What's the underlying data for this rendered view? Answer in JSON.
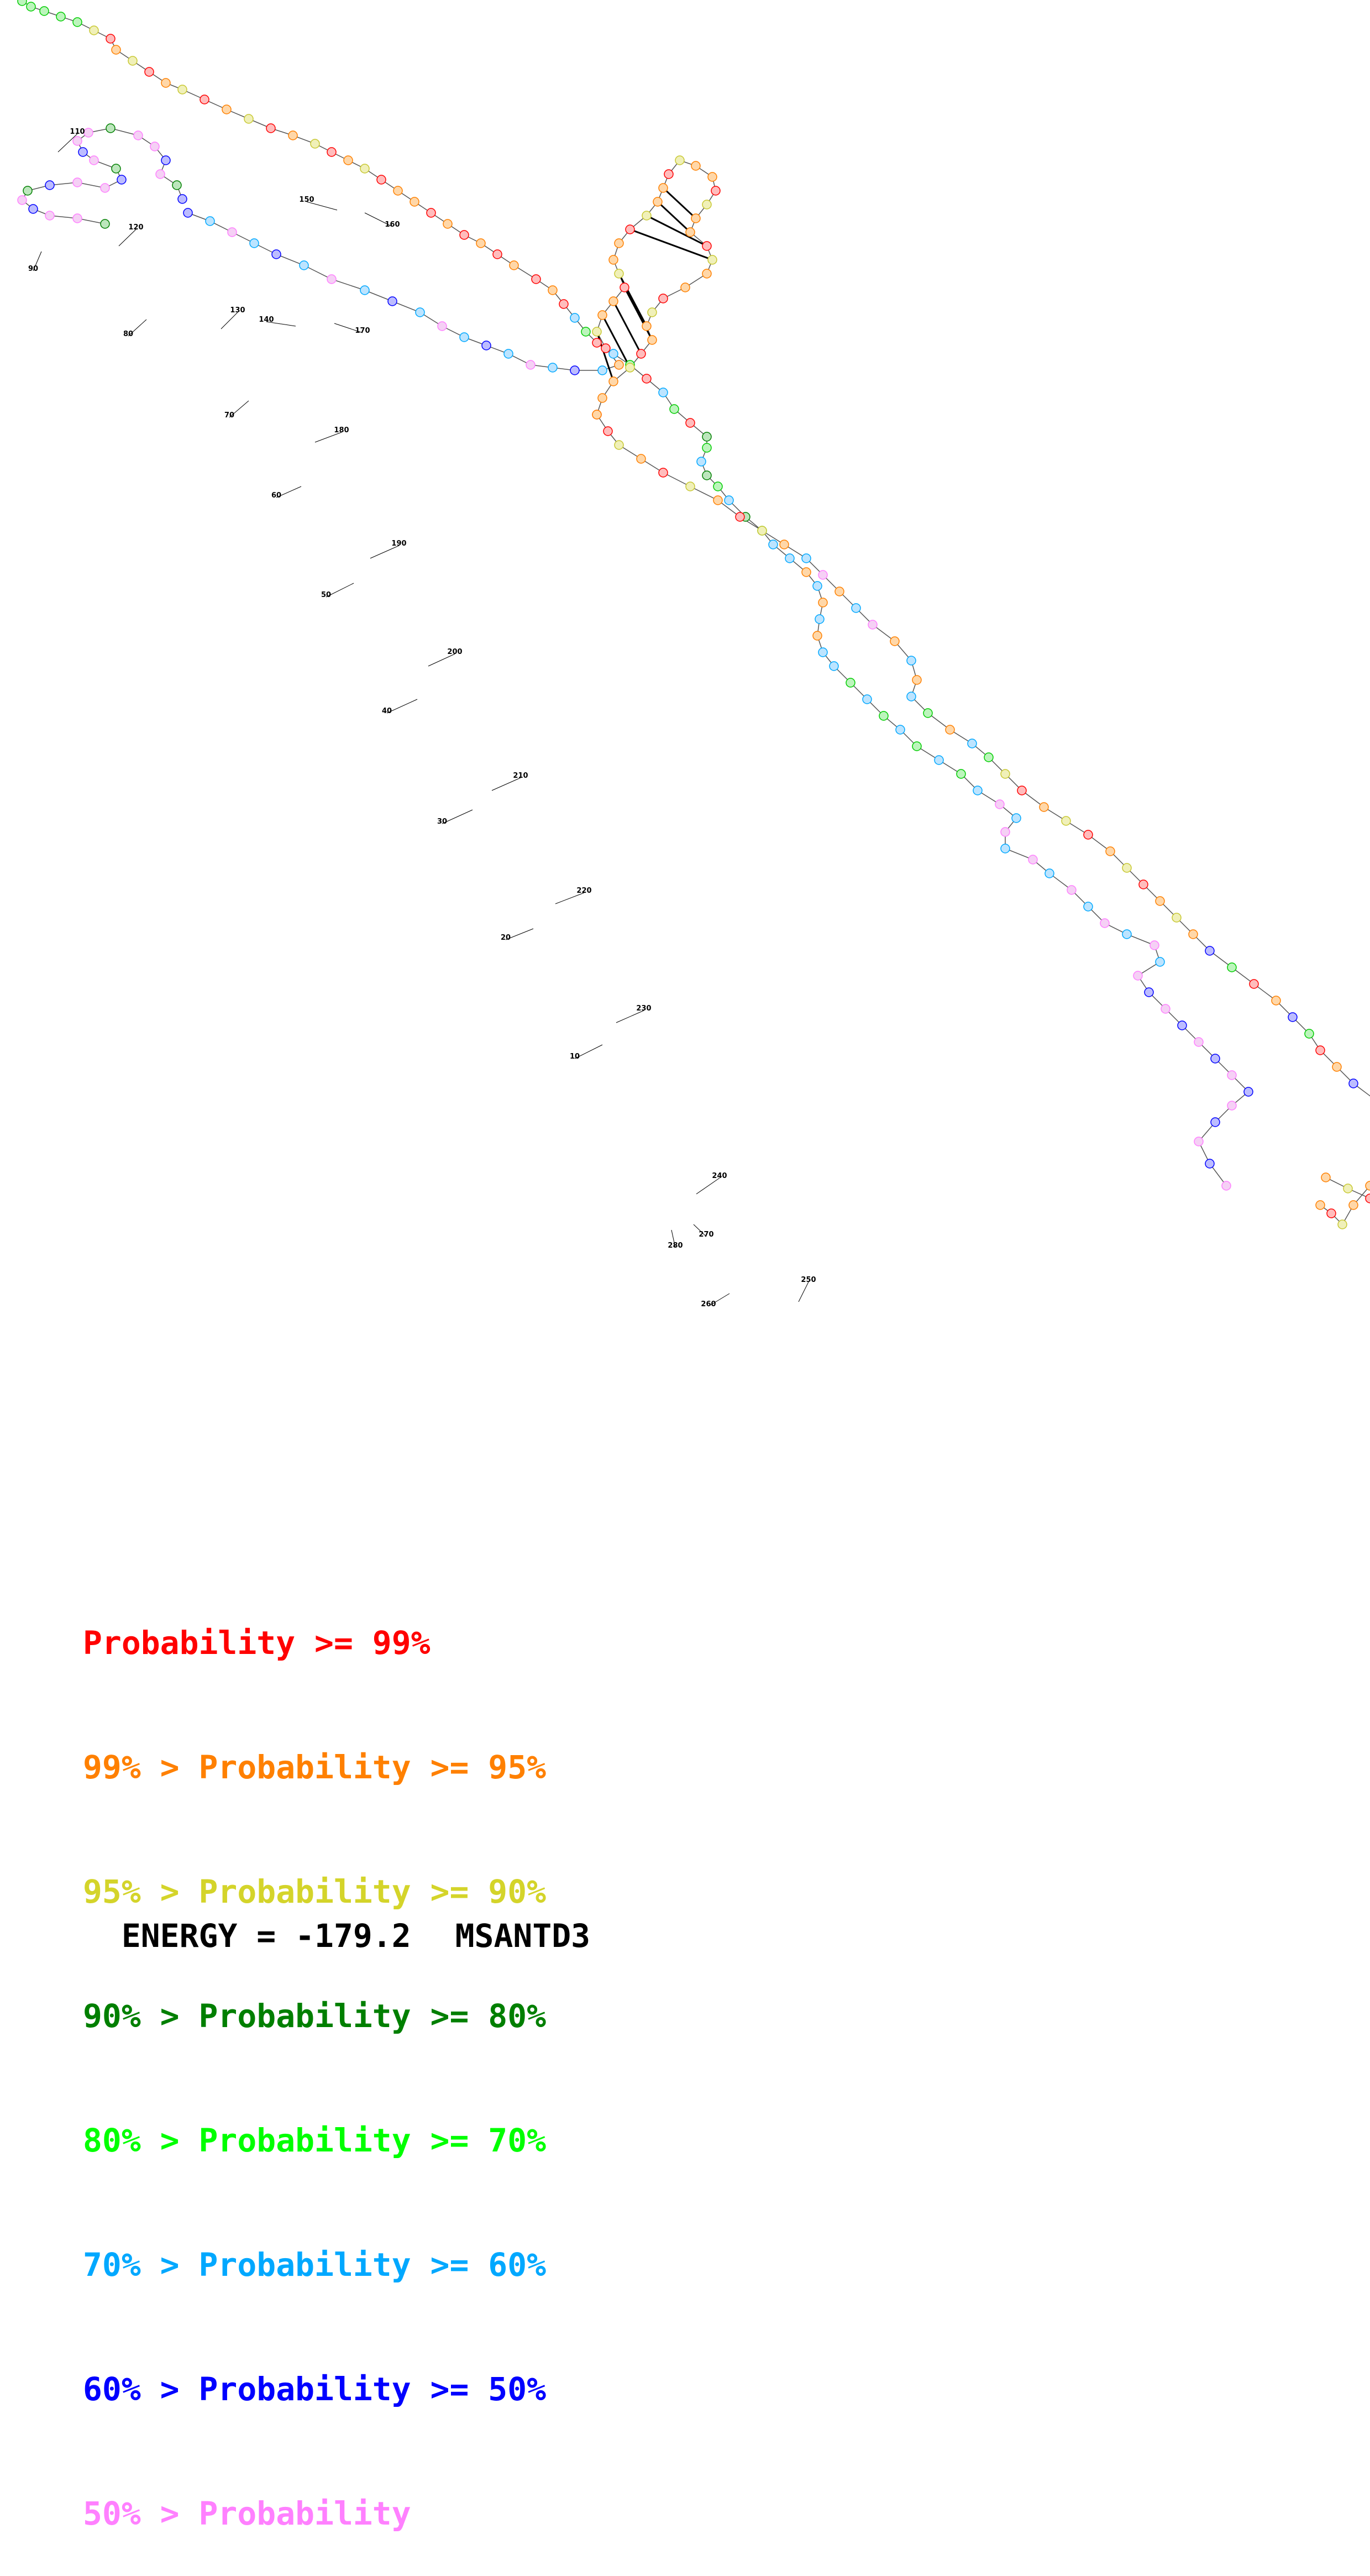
{
  "legend": [
    {
      "prefix": "",
      "text": "Probability >= 99%",
      "color": "#ff0000"
    },
    {
      "prefix": "99% > ",
      "text": "Probability >= 95%",
      "color": "#ff8000"
    },
    {
      "prefix": "95% > ",
      "text": "Probability >= 90%",
      "color": "#d4d42a"
    },
    {
      "prefix": "90% > ",
      "text": "Probability >= 80%",
      "color": "#007f00"
    },
    {
      "prefix": "80% > ",
      "text": "Probability >= 70%",
      "color": "#00ff00"
    },
    {
      "prefix": "70% > ",
      "text": "Probability >= 60%",
      "color": "#00a8ff"
    },
    {
      "prefix": "60% > ",
      "text": "Probability >= 50%",
      "color": "#0000ff"
    },
    {
      "prefix": "50% > ",
      "text": "Probability",
      "color": "#ff80ff"
    }
  ],
  "energy_label": "ENERGY = -179.2",
  "molecule_name": "MSANTD3",
  "position_labels": [
    "10",
    "20",
    "30",
    "40",
    "50",
    "60",
    "70",
    "80",
    "90",
    "110",
    "120",
    "130",
    "140",
    "150",
    "160",
    "170",
    "180",
    "190",
    "200",
    "210",
    "220",
    "230",
    "240",
    "250",
    "260",
    "270",
    "280"
  ],
  "fill_colors": {
    "red": "#ffbcbc",
    "orange": "#ffd7a8",
    "yellow": "#f0f0b8",
    "darkgreen": "#bce6bc",
    "green": "#bcf5bc",
    "cyan": "#bce4ff",
    "blue": "#bcbcff",
    "pink": "#f5d0f5"
  },
  "stroke_colors": {
    "red": "#ff0000",
    "orange": "#ff8000",
    "yellow": "#c8c832",
    "darkgreen": "#007f00",
    "green": "#00cc00",
    "cyan": "#00a8ff",
    "blue": "#0000ff",
    "pink": "#ff80ff"
  }
}
